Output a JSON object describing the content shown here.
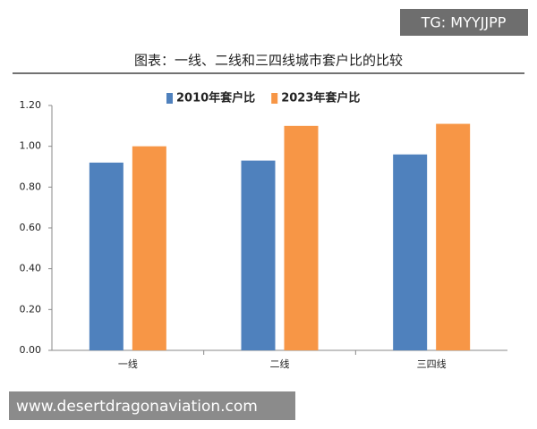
{
  "chart_data": {
    "type": "bar",
    "title": "图表：一线、二线和三四线城市套户比的比较",
    "categories": [
      "一线",
      "二线",
      "三四线"
    ],
    "series": [
      {
        "name": "2010年套户比",
        "color": "#4f81bd",
        "values": [
          0.92,
          0.93,
          0.96
        ]
      },
      {
        "name": "2023年套户比",
        "color": "#f79646",
        "values": [
          1.0,
          1.1,
          1.11
        ]
      }
    ],
    "ylim": [
      0,
      1.2
    ],
    "yticks": [
      {
        "value": 0,
        "label": "0.00"
      },
      {
        "value": 0.2,
        "label": "0.20"
      },
      {
        "value": 0.4,
        "label": "0.40"
      },
      {
        "value": 0.6,
        "label": "0.60"
      },
      {
        "value": 0.8,
        "label": "0.80"
      },
      {
        "value": 1,
        "label": "1.00"
      },
      {
        "value": 1.2,
        "label": "1.20"
      }
    ],
    "legend": "top"
  },
  "watermarks": [
    "TG: MYYJJPP",
    "www.desertdragonaviation.com"
  ]
}
